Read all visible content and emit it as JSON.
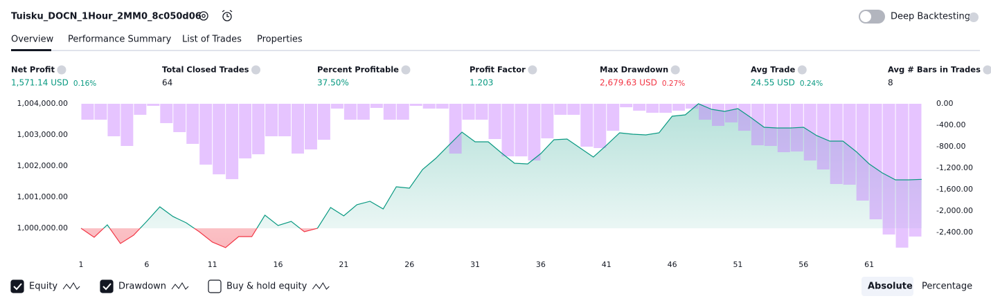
{
  "header": {
    "title": "Tuisku_DOCN_1Hour_2MM0_8c050d06",
    "toggle": "Deep Backtesting"
  },
  "tabs": [
    "Overview",
    "Performance Summary",
    "List of Trades",
    "Properties"
  ],
  "metrics": [
    {
      "label": "Net Profit",
      "value": "1,571.14 USD",
      "percent": "0.16%",
      "color": "#089981"
    },
    {
      "label": "Total Closed Trades",
      "value": "64",
      "color": "#131722"
    },
    {
      "label": "Percent Profitable",
      "value": "37.50%",
      "color": "#089981"
    },
    {
      "label": "Profit Factor",
      "value": "1.203",
      "color": "#089981"
    },
    {
      "label": "Max Drawdown",
      "value": "2,679.63 USD",
      "percent": "0.27%",
      "color": "#f23645"
    },
    {
      "label": "Avg Trade",
      "value": "24.55 USD",
      "percent": "0.24%",
      "color": "#089981"
    },
    {
      "label": "Avg # Bars in Trades",
      "value": "8",
      "color": "#131722"
    }
  ],
  "chart": {
    "type": "line-bar",
    "x": [
      1,
      2,
      3,
      4,
      5,
      6,
      7,
      8,
      9,
      10,
      11,
      12,
      13,
      14,
      15,
      16,
      17,
      18,
      19,
      20,
      21,
      22,
      23,
      24,
      25,
      26,
      27,
      28,
      29,
      30,
      31,
      32,
      33,
      34,
      35,
      36,
      37,
      38,
      39,
      40,
      41,
      42,
      43,
      44,
      45,
      46,
      47,
      48,
      49,
      50,
      51,
      52,
      53,
      54,
      55,
      56,
      57,
      58,
      59,
      60,
      61,
      62,
      63,
      64,
      65
    ],
    "xlim": [
      1,
      65
    ],
    "xticks": [
      1,
      6,
      11,
      16,
      21,
      26,
      31,
      36,
      41,
      46,
      51,
      56,
      61
    ],
    "ylim": [
      999333,
      1004000
    ],
    "yticks": [
      {
        "value": 1000000,
        "label": "1,000,000.00"
      },
      {
        "value": 1001000,
        "label": "1,001,000.00"
      },
      {
        "value": 1002000,
        "label": "1,002,000.00"
      },
      {
        "value": 1003000,
        "label": "1,003,000.00"
      },
      {
        "value": 1004000,
        "label": "1,004,000.00"
      }
    ],
    "y2lim": [
      -2710,
      0
    ],
    "y2ticks": [
      {
        "value": 0,
        "label": "0.00"
      },
      {
        "value": -400,
        "label": "-400.00"
      },
      {
        "value": -800,
        "label": "-800.00"
      },
      {
        "value": -1200,
        "label": "-1,200.00"
      },
      {
        "value": -1600,
        "label": "-1,600.00"
      },
      {
        "value": -2000,
        "label": "-2,000.00"
      },
      {
        "value": -2400,
        "label": "-2,400.00"
      }
    ],
    "baseline": 1000000,
    "series": [
      {
        "name": "Equity",
        "color": "#089981",
        "neg_color": "#f23645",
        "values": [
          1000000,
          999711,
          1000111,
          999511,
          999778,
          1000222,
          1000689,
          1000378,
          1000178,
          999889,
          999556,
          999378,
          999733,
          999733,
          1000422,
          1000089,
          1000222,
          999889,
          1000000,
          1000667,
          1000400,
          1000756,
          1000867,
          1000622,
          1001333,
          1001289,
          1001889,
          1002244,
          1002667,
          1003089,
          1002778,
          1002778,
          1002422,
          1002089,
          1002067,
          1002400,
          1002844,
          1002867,
          1002578,
          1002289,
          1002667,
          1003067,
          1003022,
          1003000,
          1003067,
          1003600,
          1003644,
          1004000,
          1003822,
          1003756,
          1003844,
          1003556,
          1003244,
          1003222,
          1003222,
          1003244,
          1002978,
          1002800,
          1002800,
          1002467,
          1002067,
          1001778,
          1001556,
          1001556,
          1001571
        ]
      },
      {
        "name": "Drawdown",
        "color": "#c77dff",
        "axis": "y2",
        "values": [
          null,
          -297,
          -297,
          -606,
          -787,
          -206,
          -39,
          -361,
          -529,
          -748,
          -1135,
          -1316,
          -1406,
          -1019,
          -942,
          -606,
          -606,
          -929,
          -852,
          -671,
          -90,
          -297,
          -297,
          -77,
          -297,
          -297,
          -39,
          -90,
          -90,
          -929,
          -297,
          -297,
          -658,
          -981,
          -981,
          -1058,
          -645,
          -206,
          -206,
          -800,
          -826,
          -503,
          -65,
          -129,
          -168,
          -168,
          -129,
          -90,
          -297,
          -413,
          -348,
          -503,
          -774,
          -787,
          -903,
          -890,
          -1058,
          -1226,
          -1497,
          -1510,
          -1806,
          -2155,
          -2439,
          -2684,
          -2477
        ]
      }
    ]
  },
  "legend": [
    {
      "label": "Equity",
      "checked": true
    },
    {
      "label": "Drawdown",
      "checked": true
    },
    {
      "label": "Buy & hold equity",
      "checked": false
    }
  ],
  "modes": [
    "Absolute",
    "Percentage"
  ]
}
